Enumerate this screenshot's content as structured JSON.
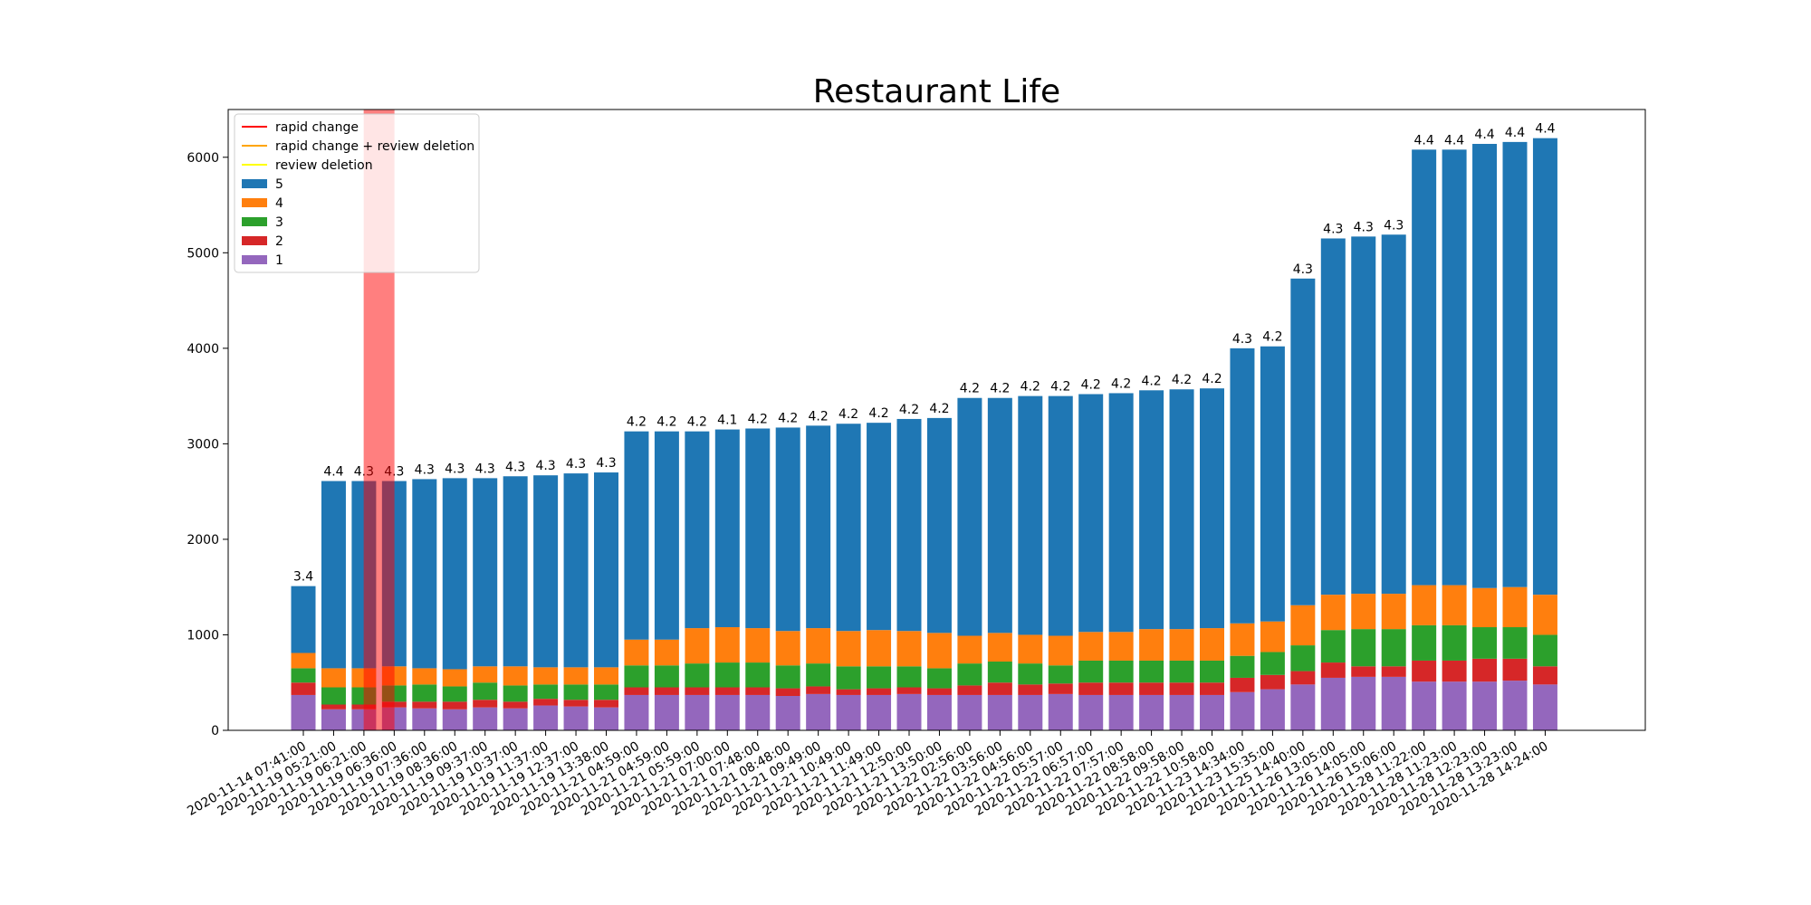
{
  "chart_data": {
    "type": "bar",
    "stacked": true,
    "title": "Restaurant Life",
    "xlabel": "",
    "ylabel": "",
    "ylim": [
      0,
      6500
    ],
    "yticks": [
      0,
      1000,
      2000,
      3000,
      4000,
      5000,
      6000
    ],
    "grid": false,
    "legend_position": "top-left",
    "categories": [
      "2020-11-14 07:41:00",
      "2020-11-19 05:21:00",
      "2020-11-19 06:21:00",
      "2020-11-19 06:36:00",
      "2020-11-19 07:36:00",
      "2020-11-19 08:36:00",
      "2020-11-19 09:37:00",
      "2020-11-19 10:37:00",
      "2020-11-19 11:37:00",
      "2020-11-19 12:37:00",
      "2020-11-19 13:38:00",
      "2020-11-21 04:59:00",
      "2020-11-21 04:59:00",
      "2020-11-21 05:59:00",
      "2020-11-21 07:00:00",
      "2020-11-21 07:48:00",
      "2020-11-21 08:48:00",
      "2020-11-21 09:49:00",
      "2020-11-21 10:49:00",
      "2020-11-21 11:49:00",
      "2020-11-21 12:50:00",
      "2020-11-21 13:50:00",
      "2020-11-22 02:56:00",
      "2020-11-22 03:56:00",
      "2020-11-22 04:56:00",
      "2020-11-22 05:57:00",
      "2020-11-22 06:57:00",
      "2020-11-22 07:57:00",
      "2020-11-22 08:58:00",
      "2020-11-22 09:58:00",
      "2020-11-22 10:58:00",
      "2020-11-23 14:34:00",
      "2020-11-23 15:35:00",
      "2020-11-25 14:40:00",
      "2020-11-26 13:05:00",
      "2020-11-26 14:05:00",
      "2020-11-26 15:06:00",
      "2020-11-28 11:22:00",
      "2020-11-28 11:23:00",
      "2020-11-28 12:23:00",
      "2020-11-28 13:23:00",
      "2020-11-28 14:24:00"
    ],
    "series": [
      {
        "name": "1",
        "color": "#9467bd",
        "values": [
          370,
          220,
          220,
          240,
          230,
          220,
          240,
          230,
          260,
          250,
          240,
          370,
          370,
          370,
          370,
          370,
          360,
          380,
          370,
          370,
          380,
          370,
          370,
          370,
          370,
          380,
          370,
          370,
          370,
          370,
          370,
          400,
          430,
          480,
          550,
          560,
          560,
          510,
          510,
          510,
          520,
          480
        ]
      },
      {
        "name": "2",
        "color": "#d62728",
        "values": [
          130,
          50,
          50,
          60,
          70,
          80,
          80,
          70,
          70,
          70,
          80,
          80,
          80,
          80,
          80,
          80,
          80,
          80,
          60,
          70,
          70,
          70,
          100,
          130,
          110,
          110,
          130,
          130,
          130,
          130,
          130,
          150,
          150,
          140,
          160,
          110,
          110,
          220,
          220,
          240,
          230,
          190
        ]
      },
      {
        "name": "3",
        "color": "#2ca02c",
        "values": [
          150,
          180,
          180,
          170,
          180,
          160,
          180,
          170,
          150,
          160,
          160,
          230,
          230,
          250,
          260,
          260,
          240,
          240,
          240,
          230,
          220,
          210,
          230,
          220,
          220,
          190,
          230,
          230,
          230,
          230,
          230,
          230,
          240,
          270,
          340,
          390,
          390,
          370,
          370,
          330,
          330,
          330
        ]
      },
      {
        "name": "4",
        "color": "#ff7f0e",
        "values": [
          160,
          200,
          200,
          200,
          170,
          180,
          170,
          200,
          180,
          180,
          180,
          270,
          270,
          370,
          370,
          360,
          360,
          370,
          370,
          380,
          370,
          370,
          290,
          300,
          300,
          310,
          300,
          300,
          330,
          330,
          340,
          340,
          320,
          420,
          370,
          370,
          370,
          420,
          420,
          410,
          420,
          420
        ]
      },
      {
        "name": "5",
        "color": "#1f77b4",
        "values": [
          700,
          1960,
          1960,
          1940,
          1980,
          2000,
          1970,
          1990,
          2010,
          2030,
          2040,
          2180,
          2180,
          2060,
          2070,
          2090,
          2130,
          2120,
          2170,
          2170,
          2220,
          2250,
          2490,
          2460,
          2500,
          2510,
          2490,
          2500,
          2500,
          2510,
          2510,
          2880,
          2880,
          3420,
          3730,
          3740,
          3760,
          4560,
          4560,
          4650,
          4660,
          4780
        ]
      }
    ],
    "bar_labels": [
      "3.4",
      "4.4",
      "4.3",
      "4.3",
      "4.3",
      "4.3",
      "4.3",
      "4.3",
      "4.3",
      "4.3",
      "4.3",
      "4.2",
      "4.2",
      "4.2",
      "4.1",
      "4.2",
      "4.2",
      "4.2",
      "4.2",
      "4.2",
      "4.2",
      "4.2",
      "4.2",
      "4.2",
      "4.2",
      "4.2",
      "4.2",
      "4.2",
      "4.2",
      "4.2",
      "4.2",
      "4.3",
      "4.2",
      "4.3",
      "4.3",
      "4.3",
      "4.3",
      "4.4",
      "4.4",
      "4.4",
      "4.4",
      "4.4"
    ],
    "lines": [
      {
        "name": "rapid change",
        "color": "#ff0000"
      },
      {
        "name": "rapid change + review deletion",
        "color": "#ffa500"
      },
      {
        "name": "review deletion",
        "color": "#ffff00"
      }
    ],
    "highlights": [
      {
        "type": "rapid change",
        "category_index": 2.5,
        "color": "#ff0000"
      }
    ],
    "legend_order": [
      "rapid change",
      "rapid change + review deletion",
      "review deletion",
      "5",
      "4",
      "3",
      "2",
      "1"
    ]
  }
}
